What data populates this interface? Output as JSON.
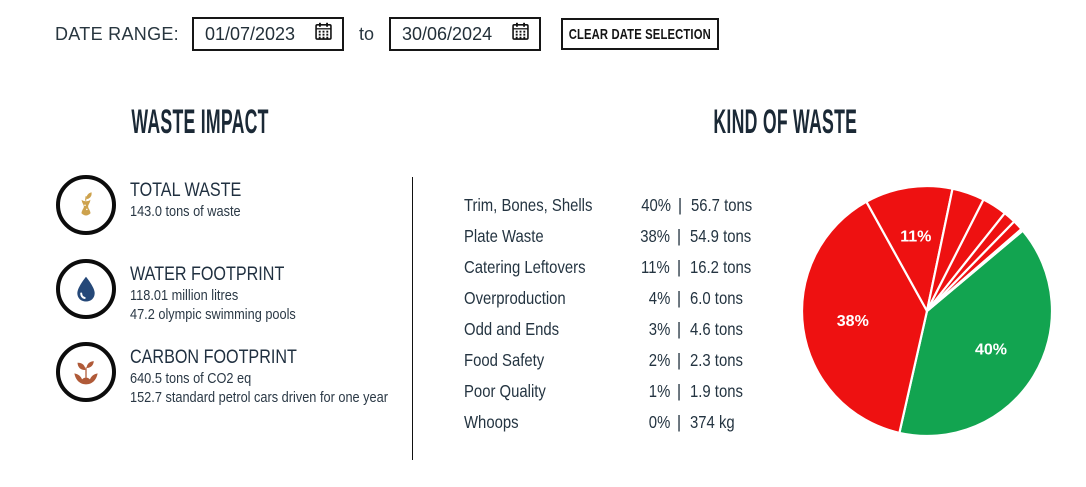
{
  "date_range": {
    "label": "DATE RANGE:",
    "from_value": "01/07/2023",
    "to_label": "to",
    "to_value": "30/06/2024",
    "clear_button_label": "CLEAR DATE SELECTION"
  },
  "waste_impact": {
    "title": "WASTE IMPACT",
    "items": [
      {
        "icon": "apple-core-icon",
        "icon_color": "#CDA24D",
        "title": "TOTAL WASTE",
        "lines": [
          "143.0 tons of waste"
        ]
      },
      {
        "icon": "water-drop-icon",
        "icon_color": "#254878",
        "title": "WATER FOOTPRINT",
        "lines": [
          "118.01 million litres",
          "47.2 olympic swimming pools"
        ]
      },
      {
        "icon": "carbon-sprout-icon",
        "icon_color": "#B05A38",
        "title": "CARBON FOOTPRINT",
        "lines": [
          "640.5 tons of CO2 eq",
          "152.7 standard petrol cars driven for one year"
        ]
      }
    ]
  },
  "kind_of_waste": {
    "title": "KIND OF WASTE",
    "separator": "|",
    "rows": [
      {
        "label": "Trim, Bones, Shells",
        "percent": "40%",
        "amount": "56.7 tons"
      },
      {
        "label": "Plate Waste",
        "percent": "38%",
        "amount": "54.9 tons"
      },
      {
        "label": "Catering Leftovers",
        "percent": "11%",
        "amount": "16.2 tons"
      },
      {
        "label": "Overproduction",
        "percent": "4%",
        "amount": "6.0 tons"
      },
      {
        "label": "Odd and Ends",
        "percent": "3%",
        "amount": "4.6 tons"
      },
      {
        "label": "Food Safety",
        "percent": "2%",
        "amount": "2.3 tons"
      },
      {
        "label": "Poor Quality",
        "percent": "1%",
        "amount": "1.9 tons"
      },
      {
        "label": "Whoops",
        "percent": "0%",
        "amount": "374 kg"
      }
    ]
  },
  "chart_data": {
    "type": "pie",
    "title": "KIND OF WASTE",
    "total_tons": 143.0,
    "start_angle_deg": 50,
    "clockwise": true,
    "divider_color": "#FFFFFF",
    "label_color": "#FFFFFF",
    "slices": [
      {
        "label": "Trim, Bones, Shells",
        "tons": 56.7,
        "percent": 40,
        "color": "#12A450",
        "shown_label": "40%"
      },
      {
        "label": "Plate Waste",
        "tons": 54.9,
        "percent": 38,
        "color": "#EE1111",
        "shown_label": "38%"
      },
      {
        "label": "Catering Leftovers",
        "tons": 16.2,
        "percent": 11,
        "color": "#EE1111",
        "shown_label": "11%"
      },
      {
        "label": "Overproduction",
        "tons": 6.0,
        "percent": 4,
        "color": "#EE1111",
        "shown_label": ""
      },
      {
        "label": "Odd and Ends",
        "tons": 4.6,
        "percent": 3,
        "color": "#EE1111",
        "shown_label": ""
      },
      {
        "label": "Food Safety",
        "tons": 2.3,
        "percent": 2,
        "color": "#EE1111",
        "shown_label": ""
      },
      {
        "label": "Poor Quality",
        "tons": 1.9,
        "percent": 1,
        "color": "#EE1111",
        "shown_label": ""
      },
      {
        "label": "Whoops",
        "tons": 0.374,
        "percent": 0,
        "color": "#EE1111",
        "shown_label": ""
      }
    ]
  }
}
